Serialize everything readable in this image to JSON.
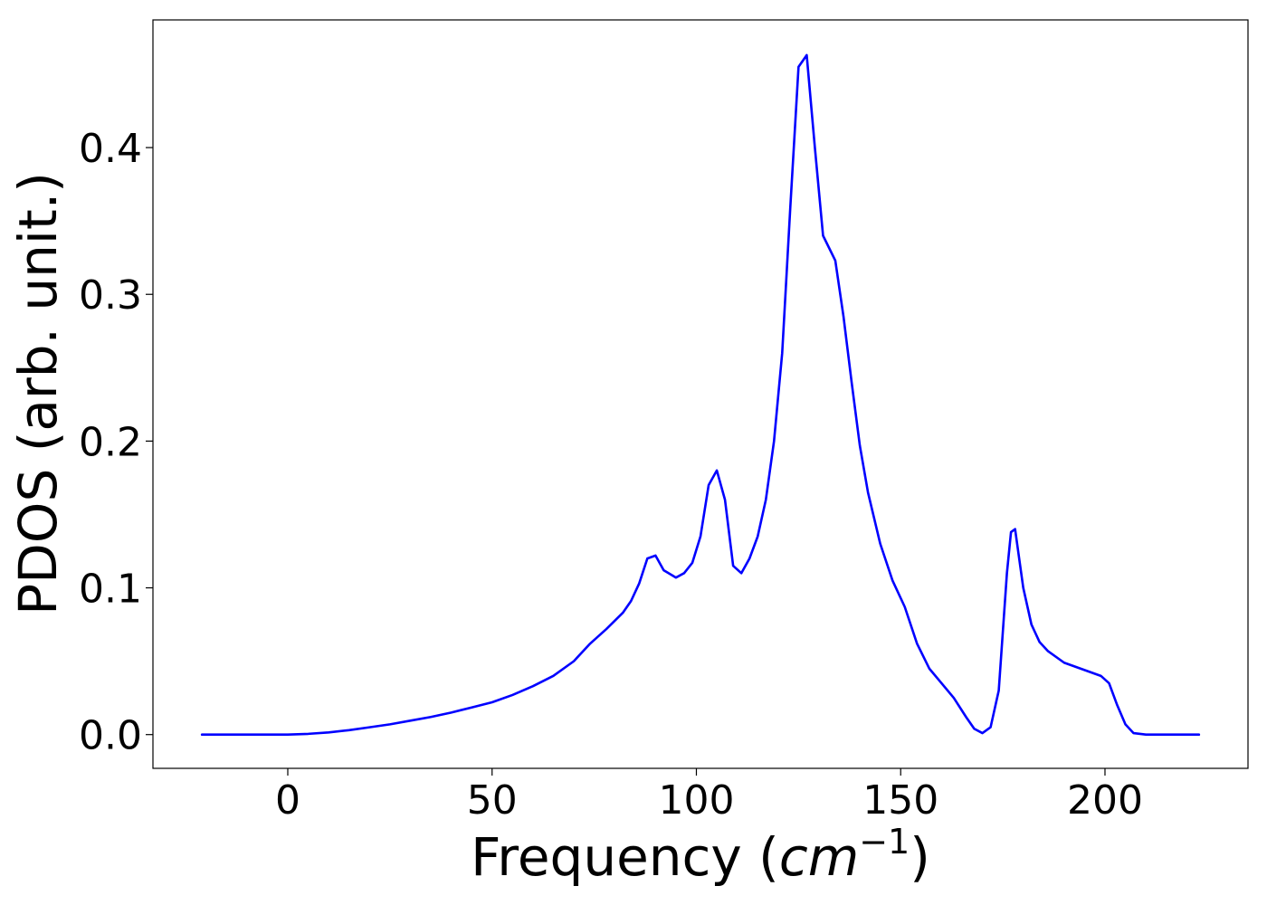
{
  "chart_data": {
    "type": "line",
    "xlabel": "Frequency (cm⁻¹)",
    "xlabel_parts": {
      "prefix": "Frequency (",
      "unit_base": "cm",
      "unit_exp": "−1",
      "suffix": ")"
    },
    "ylabel": "PDOS (arb. unit.)",
    "xlim": [
      -33,
      235
    ],
    "ylim": [
      -0.023,
      0.487
    ],
    "xticks": [
      0,
      50,
      100,
      150,
      200
    ],
    "xtick_labels": [
      "0",
      "50",
      "100",
      "150",
      "200"
    ],
    "yticks": [
      0.0,
      0.1,
      0.2,
      0.3,
      0.4
    ],
    "ytick_labels": [
      "0.0",
      "0.1",
      "0.2",
      "0.3",
      "0.4"
    ],
    "grid": false,
    "line_color": "#0000ff",
    "series": [
      {
        "x": [
          -21,
          0,
          5,
          10,
          15,
          20,
          25,
          30,
          35,
          40,
          45,
          50,
          55,
          60,
          65,
          70,
          74,
          78,
          82,
          84,
          86,
          88,
          90,
          92,
          95,
          97,
          99,
          101,
          103,
          105,
          107,
          109,
          111,
          113,
          115,
          117,
          119,
          121,
          123,
          125,
          127,
          129,
          131,
          134,
          136,
          138,
          140,
          142,
          145,
          148,
          151,
          154,
          157,
          160,
          163,
          166,
          168,
          170,
          172,
          174,
          175,
          176,
          177,
          178,
          179,
          180,
          182,
          184,
          186,
          190,
          195,
          199,
          201,
          203,
          205,
          207,
          210,
          223
        ],
        "y": [
          0.0,
          0.0,
          0.0005,
          0.0015,
          0.003,
          0.005,
          0.007,
          0.0095,
          0.012,
          0.015,
          0.0185,
          0.022,
          0.027,
          0.033,
          0.04,
          0.05,
          0.062,
          0.072,
          0.083,
          0.091,
          0.103,
          0.12,
          0.122,
          0.112,
          0.107,
          0.11,
          0.117,
          0.135,
          0.17,
          0.18,
          0.16,
          0.115,
          0.11,
          0.12,
          0.135,
          0.16,
          0.2,
          0.26,
          0.36,
          0.455,
          0.463,
          0.4,
          0.34,
          0.323,
          0.285,
          0.24,
          0.197,
          0.165,
          0.13,
          0.105,
          0.087,
          0.062,
          0.045,
          0.035,
          0.025,
          0.012,
          0.004,
          0.001,
          0.005,
          0.03,
          0.07,
          0.11,
          0.138,
          0.14,
          0.12,
          0.1,
          0.075,
          0.063,
          0.057,
          0.049,
          0.044,
          0.04,
          0.035,
          0.02,
          0.007,
          0.001,
          0.0,
          0.0
        ]
      }
    ]
  }
}
